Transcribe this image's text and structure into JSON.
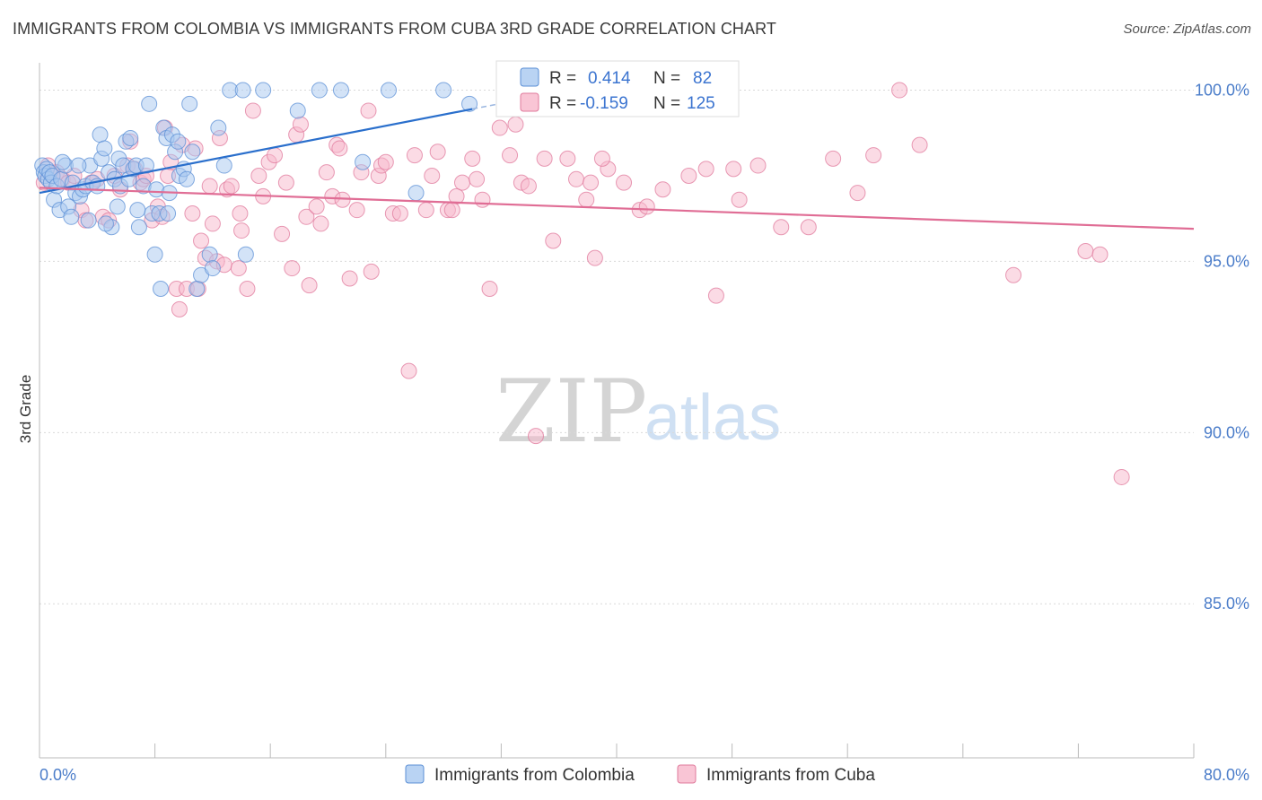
{
  "title": "IMMIGRANTS FROM COLOMBIA VS IMMIGRANTS FROM CUBA 3RD GRADE CORRELATION CHART",
  "source": "Source: ZipAtlas.com",
  "watermark": {
    "zip": "ZIP",
    "atlas": "atlas"
  },
  "chart_data": {
    "type": "scatter",
    "title": "IMMIGRANTS FROM COLOMBIA VS IMMIGRANTS FROM CUBA 3RD GRADE CORRELATION CHART",
    "xlabel": "",
    "ylabel": "3rd Grade",
    "xlim": [
      0,
      80
    ],
    "ylim": [
      80.5,
      100.8
    ],
    "x_tick_labels": {
      "left": "0.0%",
      "right": "80.0%"
    },
    "y_ticks": [
      {
        "value": 100,
        "label": "100.0%"
      },
      {
        "value": 95,
        "label": "95.0%"
      },
      {
        "value": 90,
        "label": "90.0%"
      },
      {
        "value": 85,
        "label": "85.0%"
      }
    ],
    "legend": {
      "r_label": "R =",
      "n_label": "N =",
      "entries": [
        {
          "r": "0.414",
          "n": "82",
          "color": "#a8c8f0",
          "stroke": "#5b8fd6"
        },
        {
          "r": "-0.159",
          "n": "125",
          "color": "#f7b7cb",
          "stroke": "#e07a9c"
        }
      ]
    },
    "series": [
      {
        "name": "Immigrants from Colombia",
        "color": "#a8c8f0",
        "stroke": "#5b8fd6",
        "trend": {
          "x": [
            0,
            30
          ],
          "y": [
            97.0,
            99.45
          ],
          "color": "#2a6fcc"
        },
        "points": [
          [
            0.2,
            97.8
          ],
          [
            0.3,
            97.6
          ],
          [
            0.4,
            97.5
          ],
          [
            0.5,
            97.7
          ],
          [
            0.6,
            97.4
          ],
          [
            0.7,
            97.6
          ],
          [
            0.8,
            97.3
          ],
          [
            0.9,
            97.5
          ],
          [
            1.0,
            96.8
          ],
          [
            1.2,
            97.2
          ],
          [
            1.4,
            96.5
          ],
          [
            1.5,
            97.4
          ],
          [
            1.8,
            97.8
          ],
          [
            2.0,
            96.6
          ],
          [
            2.2,
            96.3
          ],
          [
            2.3,
            97.3
          ],
          [
            2.5,
            97.0
          ],
          [
            2.8,
            96.9
          ],
          [
            3.0,
            97.1
          ],
          [
            3.2,
            97.2
          ],
          [
            3.5,
            97.8
          ],
          [
            3.7,
            97.3
          ],
          [
            4.0,
            97.2
          ],
          [
            4.2,
            98.7
          ],
          [
            4.3,
            98.0
          ],
          [
            4.5,
            98.3
          ],
          [
            4.8,
            97.6
          ],
          [
            5.0,
            96.0
          ],
          [
            5.2,
            97.4
          ],
          [
            5.4,
            96.6
          ],
          [
            5.5,
            98.0
          ],
          [
            5.6,
            97.2
          ],
          [
            5.8,
            97.8
          ],
          [
            6.0,
            98.5
          ],
          [
            6.2,
            97.4
          ],
          [
            6.3,
            98.6
          ],
          [
            6.5,
            97.7
          ],
          [
            6.7,
            97.8
          ],
          [
            6.9,
            96.0
          ],
          [
            7.2,
            97.2
          ],
          [
            7.4,
            97.8
          ],
          [
            7.6,
            99.6
          ],
          [
            7.8,
            96.4
          ],
          [
            8.0,
            95.2
          ],
          [
            8.1,
            97.1
          ],
          [
            8.3,
            96.4
          ],
          [
            8.4,
            94.2
          ],
          [
            8.6,
            98.9
          ],
          [
            8.8,
            98.6
          ],
          [
            8.9,
            96.4
          ],
          [
            9.2,
            98.7
          ],
          [
            9.4,
            98.2
          ],
          [
            9.6,
            98.5
          ],
          [
            9.7,
            97.5
          ],
          [
            10.0,
            97.7
          ],
          [
            10.2,
            97.4
          ],
          [
            10.4,
            99.6
          ],
          [
            10.6,
            98.2
          ],
          [
            10.9,
            94.2
          ],
          [
            11.2,
            94.6
          ],
          [
            12.4,
            98.9
          ],
          [
            12.8,
            97.8
          ],
          [
            13.2,
            100.0
          ],
          [
            14.1,
            100.0
          ],
          [
            14.3,
            95.2
          ],
          [
            15.5,
            100.0
          ],
          [
            17.9,
            99.4
          ],
          [
            19.4,
            100.0
          ],
          [
            20.9,
            100.0
          ],
          [
            22.4,
            97.9
          ],
          [
            24.2,
            100.0
          ],
          [
            26.1,
            97.0
          ],
          [
            28.0,
            100.0
          ],
          [
            29.8,
            99.6
          ],
          [
            11.8,
            95.2
          ],
          [
            12.0,
            94.8
          ],
          [
            2.7,
            97.8
          ],
          [
            3.4,
            96.2
          ],
          [
            6.8,
            96.5
          ],
          [
            9.0,
            97.0
          ],
          [
            1.6,
            97.9
          ],
          [
            4.6,
            96.1
          ]
        ]
      },
      {
        "name": "Immigrants from Cuba",
        "color": "#f7b7cb",
        "stroke": "#e07a9c",
        "trend": {
          "x": [
            0,
            80
          ],
          "y": [
            97.15,
            95.95
          ],
          "color": "#e06d95"
        },
        "points": [
          [
            0.3,
            97.3
          ],
          [
            0.6,
            97.8
          ],
          [
            0.9,
            97.5
          ],
          [
            1.2,
            97.6
          ],
          [
            1.6,
            97.4
          ],
          [
            2.0,
            97.3
          ],
          [
            2.4,
            97.5
          ],
          [
            2.9,
            96.5
          ],
          [
            3.2,
            96.2
          ],
          [
            3.6,
            97.3
          ],
          [
            4.0,
            97.4
          ],
          [
            4.4,
            96.3
          ],
          [
            4.8,
            96.2
          ],
          [
            5.2,
            97.5
          ],
          [
            5.6,
            97.1
          ],
          [
            6.1,
            97.8
          ],
          [
            6.3,
            98.5
          ],
          [
            6.6,
            97.7
          ],
          [
            7.0,
            97.3
          ],
          [
            7.2,
            97.4
          ],
          [
            7.4,
            97.5
          ],
          [
            7.8,
            96.2
          ],
          [
            8.2,
            96.6
          ],
          [
            8.5,
            96.3
          ],
          [
            8.7,
            98.9
          ],
          [
            8.9,
            97.5
          ],
          [
            9.1,
            97.9
          ],
          [
            9.5,
            94.2
          ],
          [
            9.7,
            93.6
          ],
          [
            9.9,
            98.4
          ],
          [
            10.2,
            94.2
          ],
          [
            10.6,
            96.4
          ],
          [
            10.8,
            98.3
          ],
          [
            11.0,
            94.2
          ],
          [
            11.2,
            95.6
          ],
          [
            11.5,
            95.1
          ],
          [
            11.8,
            97.2
          ],
          [
            12.0,
            96.1
          ],
          [
            12.3,
            95.0
          ],
          [
            12.5,
            98.6
          ],
          [
            12.8,
            94.9
          ],
          [
            13.0,
            97.1
          ],
          [
            13.3,
            97.2
          ],
          [
            13.8,
            94.8
          ],
          [
            14.0,
            95.9
          ],
          [
            14.4,
            94.2
          ],
          [
            14.8,
            99.4
          ],
          [
            15.2,
            97.5
          ],
          [
            15.5,
            96.9
          ],
          [
            15.9,
            97.9
          ],
          [
            16.3,
            98.1
          ],
          [
            16.8,
            95.8
          ],
          [
            17.1,
            97.3
          ],
          [
            17.5,
            94.8
          ],
          [
            17.8,
            98.7
          ],
          [
            18.1,
            99.0
          ],
          [
            18.5,
            96.3
          ],
          [
            18.7,
            94.3
          ],
          [
            19.2,
            96.6
          ],
          [
            19.5,
            96.1
          ],
          [
            19.9,
            97.6
          ],
          [
            20.3,
            96.9
          ],
          [
            20.6,
            98.4
          ],
          [
            20.8,
            98.3
          ],
          [
            21.0,
            96.8
          ],
          [
            21.5,
            94.5
          ],
          [
            22.0,
            96.5
          ],
          [
            22.3,
            97.6
          ],
          [
            22.8,
            99.4
          ],
          [
            23.0,
            94.7
          ],
          [
            23.5,
            97.5
          ],
          [
            23.7,
            97.8
          ],
          [
            24.0,
            97.9
          ],
          [
            24.5,
            96.4
          ],
          [
            25.0,
            96.4
          ],
          [
            25.6,
            91.8
          ],
          [
            26.0,
            98.1
          ],
          [
            26.8,
            96.5
          ],
          [
            27.2,
            97.5
          ],
          [
            27.6,
            98.2
          ],
          [
            28.3,
            96.5
          ],
          [
            28.9,
            96.9
          ],
          [
            29.3,
            97.3
          ],
          [
            30.0,
            98.0
          ],
          [
            30.3,
            97.4
          ],
          [
            30.7,
            96.8
          ],
          [
            31.2,
            94.2
          ],
          [
            31.9,
            98.9
          ],
          [
            32.6,
            98.1
          ],
          [
            33.4,
            97.3
          ],
          [
            33.9,
            97.2
          ],
          [
            34.4,
            89.9
          ],
          [
            35.0,
            98.0
          ],
          [
            35.6,
            95.6
          ],
          [
            36.6,
            98.0
          ],
          [
            37.2,
            97.4
          ],
          [
            37.9,
            96.8
          ],
          [
            38.2,
            97.3
          ],
          [
            38.5,
            95.1
          ],
          [
            39.4,
            97.7
          ],
          [
            40.5,
            97.3
          ],
          [
            41.6,
            96.5
          ],
          [
            42.1,
            96.6
          ],
          [
            43.2,
            97.1
          ],
          [
            45.0,
            97.5
          ],
          [
            46.2,
            97.7
          ],
          [
            46.9,
            94.0
          ],
          [
            48.1,
            97.7
          ],
          [
            48.5,
            96.8
          ],
          [
            49.8,
            97.8
          ],
          [
            51.4,
            96.0
          ],
          [
            53.3,
            96.0
          ],
          [
            55.0,
            98.0
          ],
          [
            56.7,
            97.0
          ],
          [
            57.8,
            98.1
          ],
          [
            59.6,
            100.0
          ],
          [
            61.0,
            98.4
          ],
          [
            67.5,
            94.6
          ],
          [
            72.5,
            95.3
          ],
          [
            73.5,
            95.2
          ],
          [
            75.0,
            88.7
          ],
          [
            28.6,
            96.5
          ],
          [
            13.9,
            96.4
          ],
          [
            33.0,
            99.0
          ],
          [
            39.0,
            98.0
          ]
        ]
      }
    ]
  }
}
